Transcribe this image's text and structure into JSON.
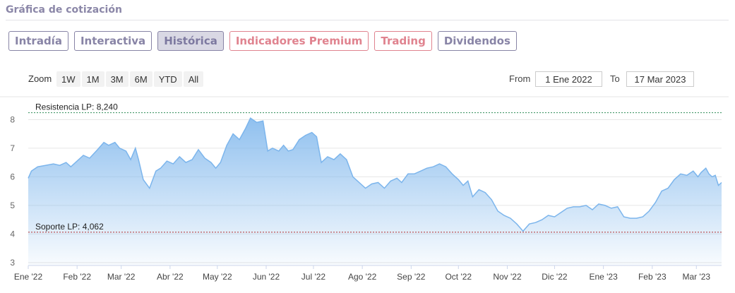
{
  "section": {
    "title": "Gráfica de cotización"
  },
  "tabs": [
    {
      "label": "Intradía",
      "state": "normal"
    },
    {
      "label": "Interactiva",
      "state": "normal"
    },
    {
      "label": "Histórica",
      "state": "active"
    },
    {
      "label": "Indicadores Premium",
      "state": "premium"
    },
    {
      "label": "Trading",
      "state": "premium"
    },
    {
      "label": "Dividendos",
      "state": "normal"
    }
  ],
  "zoom": {
    "label": "Zoom",
    "buttons": [
      "1W",
      "1M",
      "3M",
      "6M",
      "YTD",
      "All"
    ]
  },
  "range": {
    "from_label": "From",
    "from_value": "1 Ene 2022",
    "to_label": "To",
    "to_value": "17 Mar 2023"
  },
  "colors": {
    "accent": "#8884a6",
    "premium": "#e0838f",
    "area": "#7cb5ec",
    "resistance": "#2e8b57",
    "support": "#b03030"
  },
  "chart_data": {
    "type": "area",
    "title": "",
    "xlabel": "",
    "ylabel": "",
    "ylim": [
      2.9,
      8.6
    ],
    "xlim": [
      "2022-01-01",
      "2023-03-17"
    ],
    "grid": true,
    "yticks": [
      3,
      4,
      5,
      6,
      7,
      8
    ],
    "xticks": [
      {
        "date": "2022-01-01",
        "label": "Ene '22"
      },
      {
        "date": "2022-02-01",
        "label": "Feb '22"
      },
      {
        "date": "2022-03-01",
        "label": "Mar '22"
      },
      {
        "date": "2022-04-01",
        "label": "Abr '22"
      },
      {
        "date": "2022-05-01",
        "label": "May '22"
      },
      {
        "date": "2022-06-01",
        "label": "Jun '22"
      },
      {
        "date": "2022-07-01",
        "label": "Jul '22"
      },
      {
        "date": "2022-08-01",
        "label": "Ago '22"
      },
      {
        "date": "2022-09-01",
        "label": "Sep '22"
      },
      {
        "date": "2022-10-01",
        "label": "Oct '22"
      },
      {
        "date": "2022-11-01",
        "label": "Nov '22"
      },
      {
        "date": "2022-12-01",
        "label": "Dic '22"
      },
      {
        "date": "2023-01-01",
        "label": "Ene '23"
      },
      {
        "date": "2023-02-01",
        "label": "Feb '23"
      },
      {
        "date": "2023-03-01",
        "label": "Mar '23"
      }
    ],
    "reference_lines": [
      {
        "label": "Resistencia LP: 8,240",
        "value": 8.24,
        "style": "resistance"
      },
      {
        "label": "Soporte LP: 4,062",
        "value": 4.062,
        "style": "support"
      }
    ],
    "series": [
      {
        "points": [
          [
            "2022-01-01",
            5.95
          ],
          [
            "2022-01-03",
            6.2
          ],
          [
            "2022-01-07",
            6.35
          ],
          [
            "2022-01-12",
            6.4
          ],
          [
            "2022-01-17",
            6.45
          ],
          [
            "2022-01-21",
            6.4
          ],
          [
            "2022-01-25",
            6.5
          ],
          [
            "2022-01-28",
            6.35
          ],
          [
            "2022-02-01",
            6.55
          ],
          [
            "2022-02-05",
            6.75
          ],
          [
            "2022-02-09",
            6.65
          ],
          [
            "2022-02-14",
            6.95
          ],
          [
            "2022-02-18",
            7.2
          ],
          [
            "2022-02-21",
            7.1
          ],
          [
            "2022-02-25",
            7.2
          ],
          [
            "2022-02-28",
            7.0
          ],
          [
            "2022-03-04",
            6.9
          ],
          [
            "2022-03-07",
            6.6
          ],
          [
            "2022-03-10",
            7.0
          ],
          [
            "2022-03-12",
            6.6
          ],
          [
            "2022-03-15",
            5.9
          ],
          [
            "2022-03-19",
            5.6
          ],
          [
            "2022-03-23",
            6.2
          ],
          [
            "2022-03-26",
            6.3
          ],
          [
            "2022-03-30",
            6.55
          ],
          [
            "2022-04-03",
            6.45
          ],
          [
            "2022-04-07",
            6.7
          ],
          [
            "2022-04-11",
            6.5
          ],
          [
            "2022-04-15",
            6.6
          ],
          [
            "2022-04-19",
            6.95
          ],
          [
            "2022-04-23",
            6.65
          ],
          [
            "2022-04-27",
            6.5
          ],
          [
            "2022-04-30",
            6.3
          ],
          [
            "2022-05-03",
            6.5
          ],
          [
            "2022-05-07",
            7.1
          ],
          [
            "2022-05-11",
            7.5
          ],
          [
            "2022-05-15",
            7.3
          ],
          [
            "2022-05-19",
            7.7
          ],
          [
            "2022-05-22",
            8.05
          ],
          [
            "2022-05-26",
            7.9
          ],
          [
            "2022-05-30",
            7.95
          ],
          [
            "2022-06-02",
            6.9
          ],
          [
            "2022-06-05",
            7.0
          ],
          [
            "2022-06-09",
            6.9
          ],
          [
            "2022-06-12",
            7.1
          ],
          [
            "2022-06-15",
            6.9
          ],
          [
            "2022-06-18",
            6.95
          ],
          [
            "2022-06-22",
            7.3
          ],
          [
            "2022-06-26",
            7.45
          ],
          [
            "2022-06-30",
            7.55
          ],
          [
            "2022-07-03",
            7.4
          ],
          [
            "2022-07-06",
            6.5
          ],
          [
            "2022-07-10",
            6.7
          ],
          [
            "2022-07-14",
            6.6
          ],
          [
            "2022-07-18",
            6.8
          ],
          [
            "2022-07-22",
            6.6
          ],
          [
            "2022-07-26",
            6.0
          ],
          [
            "2022-07-30",
            5.8
          ],
          [
            "2022-08-03",
            5.6
          ],
          [
            "2022-08-07",
            5.75
          ],
          [
            "2022-08-11",
            5.8
          ],
          [
            "2022-08-15",
            5.6
          ],
          [
            "2022-08-19",
            5.85
          ],
          [
            "2022-08-23",
            5.95
          ],
          [
            "2022-08-26",
            5.8
          ],
          [
            "2022-08-30",
            6.1
          ],
          [
            "2022-09-03",
            6.1
          ],
          [
            "2022-09-07",
            6.2
          ],
          [
            "2022-09-11",
            6.3
          ],
          [
            "2022-09-15",
            6.35
          ],
          [
            "2022-09-19",
            6.45
          ],
          [
            "2022-09-23",
            6.35
          ],
          [
            "2022-09-27",
            6.1
          ],
          [
            "2022-10-01",
            5.9
          ],
          [
            "2022-10-04",
            5.7
          ],
          [
            "2022-10-07",
            5.85
          ],
          [
            "2022-10-10",
            5.3
          ],
          [
            "2022-10-14",
            5.55
          ],
          [
            "2022-10-18",
            5.45
          ],
          [
            "2022-10-22",
            5.2
          ],
          [
            "2022-10-26",
            4.8
          ],
          [
            "2022-10-30",
            4.65
          ],
          [
            "2022-11-03",
            4.55
          ],
          [
            "2022-11-07",
            4.35
          ],
          [
            "2022-11-11",
            4.1
          ],
          [
            "2022-11-15",
            4.35
          ],
          [
            "2022-11-19",
            4.4
          ],
          [
            "2022-11-23",
            4.5
          ],
          [
            "2022-11-27",
            4.65
          ],
          [
            "2022-12-01",
            4.6
          ],
          [
            "2022-12-05",
            4.75
          ],
          [
            "2022-12-09",
            4.9
          ],
          [
            "2022-12-13",
            4.95
          ],
          [
            "2022-12-17",
            4.95
          ],
          [
            "2022-12-21",
            5.0
          ],
          [
            "2022-12-25",
            4.85
          ],
          [
            "2022-12-29",
            5.05
          ],
          [
            "2023-01-02",
            5.0
          ],
          [
            "2023-01-06",
            4.9
          ],
          [
            "2023-01-10",
            4.95
          ],
          [
            "2023-01-14",
            4.6
          ],
          [
            "2023-01-18",
            4.55
          ],
          [
            "2023-01-22",
            4.55
          ],
          [
            "2023-01-26",
            4.6
          ],
          [
            "2023-01-30",
            4.8
          ],
          [
            "2023-02-03",
            5.1
          ],
          [
            "2023-02-07",
            5.5
          ],
          [
            "2023-02-11",
            5.6
          ],
          [
            "2023-02-15",
            5.9
          ],
          [
            "2023-02-19",
            6.1
          ],
          [
            "2023-02-23",
            6.05
          ],
          [
            "2023-02-27",
            6.2
          ],
          [
            "2023-03-02",
            6.0
          ],
          [
            "2023-03-04",
            6.15
          ],
          [
            "2023-03-07",
            6.3
          ],
          [
            "2023-03-09",
            6.1
          ],
          [
            "2023-03-11",
            6.0
          ],
          [
            "2023-03-13",
            6.05
          ],
          [
            "2023-03-15",
            5.7
          ],
          [
            "2023-03-17",
            5.8
          ]
        ]
      }
    ]
  }
}
